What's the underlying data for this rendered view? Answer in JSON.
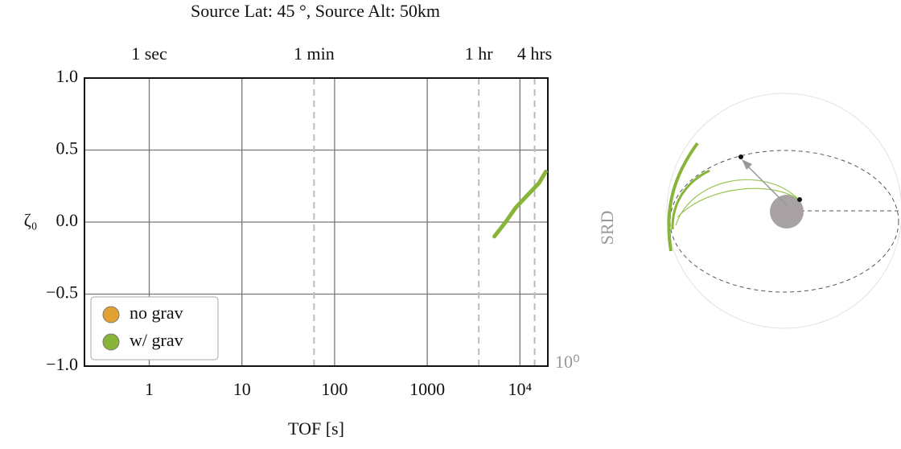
{
  "chart_data": {
    "type": "line",
    "title": "Source Lat: 45 °, Source Alt: 50km",
    "xlabel": "TOF [s]",
    "ylabel": "ζ₀",
    "xscale": "log",
    "xlim": [
      0.2,
      20000
    ],
    "ylim": [
      -1.0,
      1.0
    ],
    "xticks": [
      1,
      10,
      100,
      1000,
      {
        "value": 10000,
        "label": "10⁴"
      }
    ],
    "yticks": [
      {
        "value": -1.0,
        "label": "−1.0"
      },
      {
        "value": -0.5,
        "label": "−0.5"
      },
      {
        "value": 0.0,
        "label": "0.0"
      },
      {
        "value": 0.5,
        "label": "0.5"
      },
      {
        "value": 1.0,
        "label": "1.0"
      }
    ],
    "top_xticks": [
      {
        "value": 1,
        "label": "1 sec"
      },
      {
        "value": 60,
        "label": "1 min"
      },
      {
        "value": 3600,
        "label": "1 hr"
      },
      {
        "value": 14400,
        "label": "4 hrs"
      }
    ],
    "top_xticks_dashed": [
      false,
      true,
      true,
      true
    ],
    "grid": true,
    "legend": "lower left",
    "corner_label": "10⁰",
    "side_label": "SRD",
    "series": [
      {
        "name": "no grav",
        "color": "#e3a131",
        "x": [],
        "values": []
      },
      {
        "name": "w/ grav",
        "color": "#88b43a",
        "x": [
          5300,
          7000,
          9000,
          11000,
          13500,
          16000,
          19000
        ],
        "values": [
          -0.1,
          0.0,
          0.1,
          0.16,
          0.22,
          0.27,
          0.35
        ]
      }
    ]
  }
}
